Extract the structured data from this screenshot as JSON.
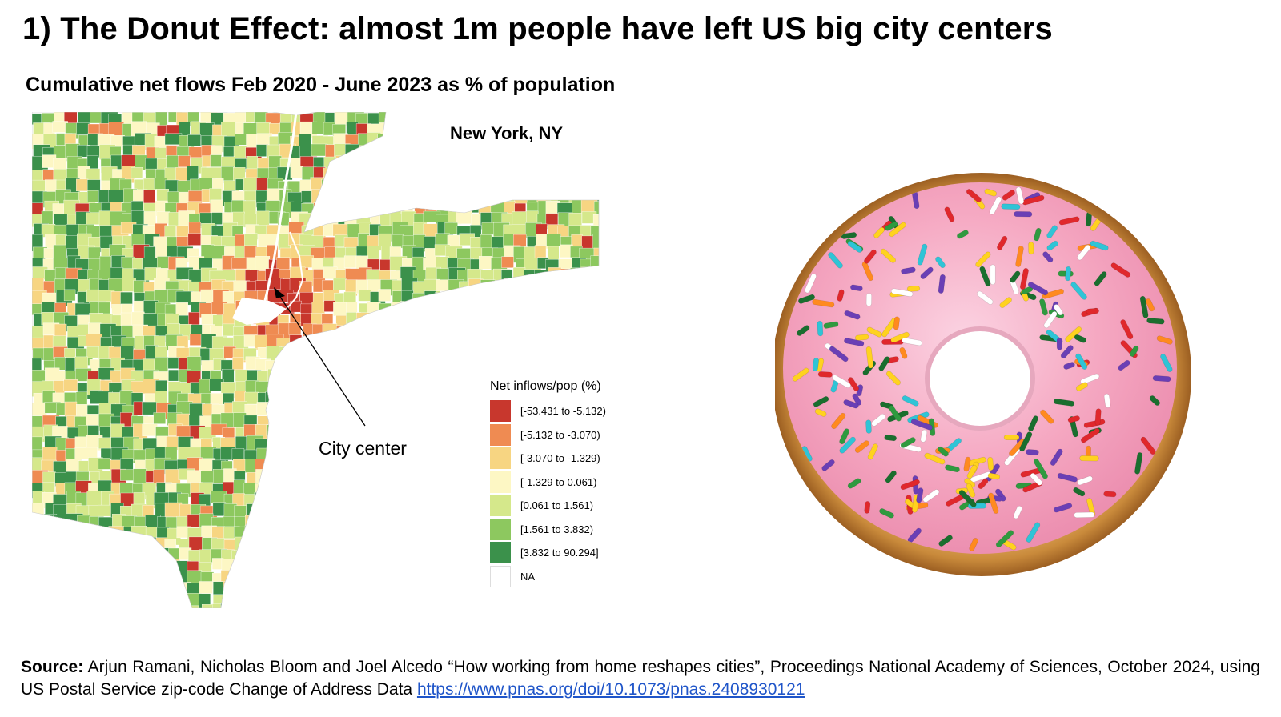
{
  "title": "1) The Donut Effect: almost 1m people have left US big city centers",
  "subtitle": "Cumulative net flows Feb 2020 - June 2023 as % of population",
  "map": {
    "label": "New York, NY",
    "annotation": "City center",
    "legend": {
      "title": "Net inflows/pop (%)",
      "items": [
        {
          "label": "[-53.431 to -5.132)",
          "color": "#c8372d"
        },
        {
          "label": "[-5.132 to -3.070)",
          "color": "#ef8b52"
        },
        {
          "label": "[-3.070 to -1.329)",
          "color": "#f7d582"
        },
        {
          "label": "[-1.329 to 0.061)",
          "color": "#fdf7c4"
        },
        {
          "label": "[0.061 to 1.561)",
          "color": "#d5e88b"
        },
        {
          "label": "[1.561 to 3.832)",
          "color": "#8dc85f"
        },
        {
          "label": "[3.832 to 90.294]",
          "color": "#3b914b"
        },
        {
          "label": "NA",
          "color": "#ffffff"
        }
      ]
    }
  },
  "donut": {
    "icing_color": "#f5a7c1",
    "dough_color": "#c98a3b",
    "sprinkle_colors": [
      "#e0282c",
      "#2f9a3f",
      "#6a3fb5",
      "#ff8a1f",
      "#ffd21f",
      "#2fc4d6",
      "#ffffff",
      "#1a6e2e"
    ]
  },
  "source": {
    "label": "Source:",
    "text": " Arjun Ramani, Nicholas Bloom and Joel Alcedo “How working from home reshapes cities”, Proceedings National Academy of Sciences, October 2024, using US Postal Service zip-code Change of Address Data ",
    "link": "https://www.pnas.org/doi/10.1073/pnas.2408930121"
  }
}
